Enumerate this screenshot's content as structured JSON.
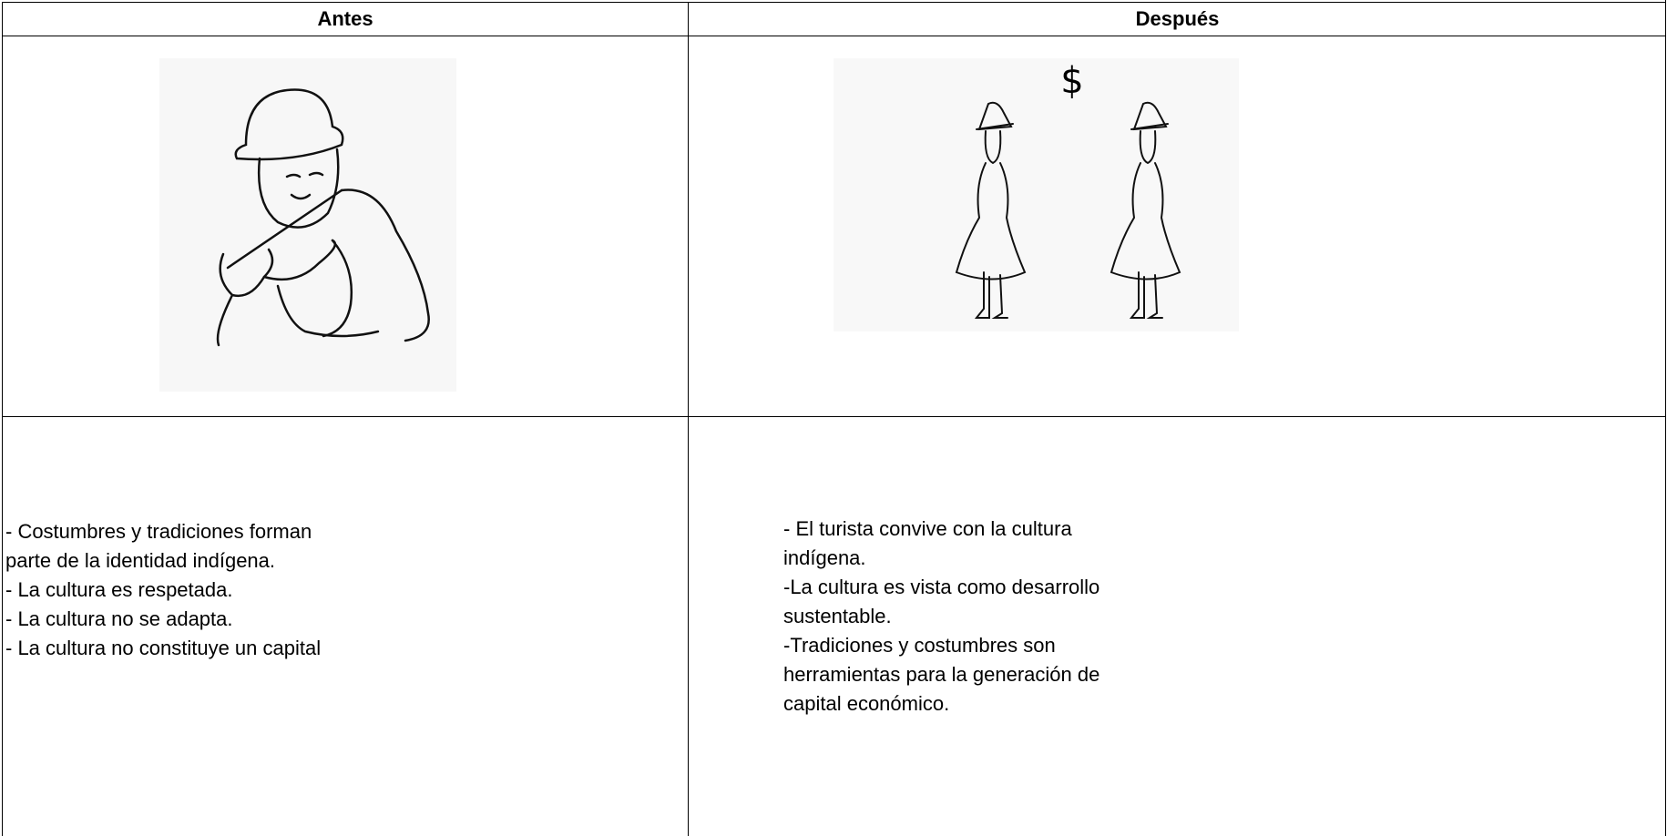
{
  "table": {
    "header": [
      "Antes",
      "Después"
    ],
    "rows": [
      [
        [
          "- Costumbres y tradiciones forman",
          "parte de la identidad indígena.",
          "- La cultura es respetada.",
          "- La cultura no se adapta.",
          "- La cultura no constituye un capital"
        ],
        [
          "- El turista convive con la cultura",
          "indígena.",
          "-La cultura es vista como desarrollo",
          "sustentable.",
          "-Tradiciones y costumbres son",
          "herramientas para la generación de",
          "capital económico."
        ]
      ]
    ]
  },
  "images": [
    {},
    {
      "symbol": "$"
    }
  ]
}
